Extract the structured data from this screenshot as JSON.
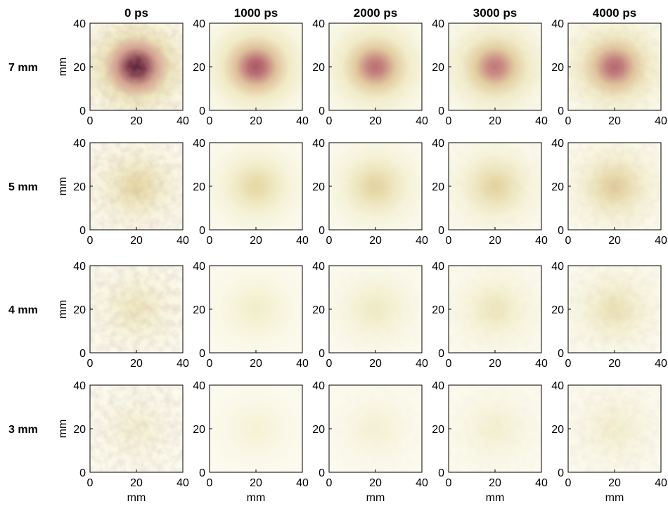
{
  "chart_data": {
    "type": "heatmap",
    "grid_columns": [
      "0 ps",
      "1000 ps",
      "2000 ps",
      "3000 ps",
      "4000 ps"
    ],
    "grid_rows": [
      "7 mm",
      "5 mm",
      "4 mm",
      "3 mm"
    ],
    "xlabel": "mm",
    "ylabel": "mm",
    "xlim": [
      0,
      40
    ],
    "ylim": [
      0,
      40
    ],
    "xticks": [
      "0",
      "20",
      "40"
    ],
    "yticks": [
      "0",
      "20",
      "40"
    ],
    "colormap": [
      "#fcfbf0",
      "#f3efcf",
      "#e6d9a6",
      "#d49d8c",
      "#a84f63",
      "#3a1626"
    ],
    "peak_center": [
      20,
      20
    ],
    "peak_intensity": [
      [
        0.95,
        0.78,
        0.72,
        0.7,
        0.74
      ],
      [
        0.4,
        0.4,
        0.42,
        0.42,
        0.45
      ],
      [
        0.28,
        0.22,
        0.25,
        0.28,
        0.32
      ],
      [
        0.18,
        0.15,
        0.16,
        0.18,
        0.2
      ]
    ],
    "noise_level": [
      0.3,
      0.0,
      0.03,
      0.06,
      0.14
    ],
    "grid": false
  }
}
